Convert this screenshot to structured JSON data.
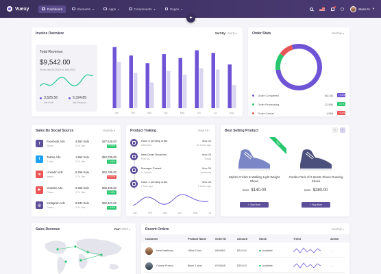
{
  "header": {
    "brand": "Vuexy",
    "nav": [
      {
        "label": "Dashboard",
        "active": true
      },
      {
        "label": "Elements",
        "active": false
      },
      {
        "label": "Apps",
        "active": false
      },
      {
        "label": "Components",
        "active": false
      },
      {
        "label": "Pages",
        "active": false
      }
    ],
    "user_name": "Marie N.",
    "fab": "+"
  },
  "invoice": {
    "title": "Invoice Overview",
    "sort_label": "Sort By:",
    "sort_value": "Yearly",
    "total_label": "Total Revenue:",
    "total_value": "$9,542.00",
    "date_range": "From Jan 20,2022 to July,2022",
    "net_profit_value": "3,526,56",
    "net_profit_label": "Net Profit",
    "net_revenue_value": "5,324,85",
    "net_revenue_label": "Net Revenue",
    "colors": {
      "primary": "#6f55d6",
      "secondary": "#d9d4ef"
    }
  },
  "chart_data": {
    "type": "bar",
    "categories": [
      "Jan",
      "Feb",
      "Mar",
      "Apr",
      "May",
      "Jun",
      "Jul",
      "Aug"
    ],
    "series": [
      {
        "values": [
          95,
          82,
          70,
          84,
          78,
          90,
          86,
          68
        ]
      },
      {
        "values": [
          72,
          55,
          40,
          58,
          52,
          62,
          60,
          36
        ]
      }
    ],
    "ylim": [
      0,
      100
    ]
  },
  "order_stats": {
    "title": "Order Stats",
    "period": "Monthly",
    "donut": [
      {
        "name": "Order Completed",
        "value": 78,
        "color": "#6f55d6"
      },
      {
        "name": "Order Processing",
        "value": 12,
        "color": "#28c76f"
      },
      {
        "name": "Order Cancel",
        "value": 10,
        "color": "#ea5455"
      }
    ],
    "rows": [
      {
        "label": "Order Completed",
        "count": "56,236",
        "badge": "+0.2%",
        "color": "#6f55d6"
      },
      {
        "label": "Order Processing",
        "count": "12,596",
        "badge": "-0.7%",
        "color": "#28c76f"
      },
      {
        "label": "Order Cancel",
        "count": "1,568",
        "badge": "+0.4%",
        "color": "#ea5455"
      }
    ]
  },
  "social": {
    "title": "Sales By Social Source",
    "period": "Monthly",
    "rows": [
      {
        "name": "Facebook Ads",
        "type": "Shoes",
        "sales": "4,562 Sale",
        "sub": "4.2k Like",
        "amount": "$47,526.00",
        "badge": "+ 0.5%",
        "badge_color": "#28c76f",
        "color": "#5e4f9a",
        "letter": "f"
      },
      {
        "name": "Twitter Ads",
        "type": "T shirt",
        "sales": "1,652 Sale",
        "sub": "3.7k Like",
        "amount": "$52,785.00",
        "badge": "+ 0.6%",
        "badge_color": "#28c76f",
        "color": "#1da1f2",
        "letter": "t"
      },
      {
        "name": "Linkedin Ads",
        "type": "Watch",
        "sales": "5,256 Sale",
        "sub": "2.7k Like",
        "amount": "$52,785.00",
        "badge": "+ 0.7%",
        "badge_color": "#ea5455",
        "color": "#ea5455",
        "letter": "in"
      },
      {
        "name": "Youtube Ads",
        "type": "Chairs",
        "sales": "6,965 Sale",
        "sub": "3.7k Like",
        "amount": "$86,456.00",
        "badge": "+ 0.9%",
        "badge_color": "#28c76f",
        "color": "#ea5455",
        "letter": "▶"
      },
      {
        "name": "Instagram Ads",
        "type": "Chairs",
        "sales": "8,532 Sale",
        "sub": "4.2k Like",
        "amount": "$92,452.00",
        "badge": "+ 0.8%",
        "badge_color": "#28c76f",
        "color": "#5e4f9a",
        "letter": "◎"
      }
    ]
  },
  "tracking": {
    "title": "Product Traking",
    "view_all": "View All",
    "rows": [
      {
        "title": "Have 5 pending order.",
        "sub": "Delivered",
        "date": "Nov 02",
        "when": "12 hours ago"
      },
      {
        "title": "New Order Received",
        "sub": "Pick Up",
        "date": "Nov 03",
        "when": "Today"
      },
      {
        "title": "Manager Posted",
        "sub": "In Transit",
        "date": "Nov 03",
        "when": "Yesterday"
      },
      {
        "title": "Have 1 pending order.",
        "sub": "2 hour ago",
        "date": "Nov 04",
        "when": "6 hours ago"
      }
    ],
    "months": [
      "Jan",
      "Feb",
      "Mar",
      "Apr",
      "May",
      "Jun"
    ]
  },
  "best_selling": {
    "title": "Best Selling Product",
    "products": [
      {
        "name": "Stylish Cricket & Walking Light Weight Shoes",
        "old_price": "$380",
        "price": "$140.00",
        "buy": "Buy Now",
        "ribbon": "New"
      },
      {
        "name": "Combo Pack of 2 Sports Shoes Running Shoes",
        "old_price": "$320",
        "price": "$280.00",
        "buy": "Buy Now"
      }
    ]
  },
  "sales_revenue": {
    "title": "Sales Revenue",
    "year_label": "Year:",
    "year_value": "2022"
  },
  "recent_orders": {
    "title": "Recent Orders",
    "period": "Monthly",
    "columns": [
      "Customer",
      "Product Name",
      "Order ID",
      "Amount",
      "Stock",
      "Trend",
      "Action"
    ],
    "rows": [
      {
        "customer": "Neal Matthews",
        "product": "Office Chair",
        "order_id": "#526552",
        "amount": "$210.00",
        "stock": "Available",
        "action": "..."
      },
      {
        "customer": "Connie Franco",
        "product": "Black T-shirt",
        "order_id": "#746648",
        "amount": "$253.00",
        "stock": "Available",
        "action": "..."
      }
    ]
  }
}
